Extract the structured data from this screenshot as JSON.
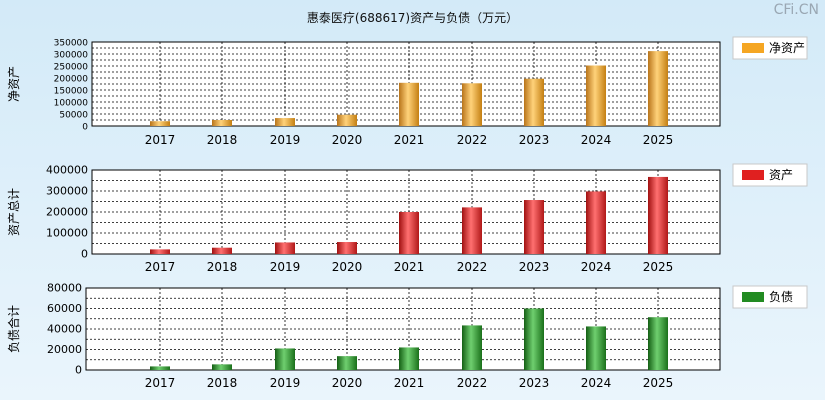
{
  "title": "惠泰医疗(688617)资产与负债（万元）",
  "watermark": "CFi.CN",
  "chart_data": [
    {
      "type": "bar",
      "ylabel": "净资产",
      "legend": "净资产",
      "color": "#f5a623",
      "categories": [
        "2017",
        "2018",
        "2019",
        "2020",
        "2021",
        "2022",
        "2023",
        "2024",
        "2025"
      ],
      "values": [
        20000,
        25000,
        33000,
        47000,
        180000,
        178000,
        197000,
        252000,
        312000
      ],
      "ylim": [
        0,
        350000
      ],
      "yticks": [
        0,
        50000,
        100000,
        150000,
        200000,
        250000,
        300000,
        350000
      ],
      "minor_yticks": [
        25000,
        75000,
        125000,
        175000,
        225000,
        275000,
        325000
      ],
      "legend_position": "right",
      "grid": true
    },
    {
      "type": "bar",
      "ylabel": "资产总计",
      "legend": "资产",
      "color": "#e02020",
      "categories": [
        "2017",
        "2018",
        "2019",
        "2020",
        "2021",
        "2022",
        "2023",
        "2024",
        "2025"
      ],
      "values": [
        22000,
        30000,
        55000,
        57000,
        200000,
        222000,
        257000,
        298000,
        367000
      ],
      "ylim": [
        0,
        400000
      ],
      "yticks": [
        0,
        100000,
        200000,
        300000,
        400000
      ],
      "minor_yticks": [
        50000,
        150000,
        250000,
        350000
      ],
      "legend_position": "right",
      "grid": true
    },
    {
      "type": "bar",
      "ylabel": "负债合计",
      "legend": "负债",
      "color": "#228b22",
      "categories": [
        "2017",
        "2018",
        "2019",
        "2020",
        "2021",
        "2022",
        "2023",
        "2024",
        "2025"
      ],
      "values": [
        3500,
        5500,
        21000,
        13500,
        22000,
        43500,
        60000,
        42500,
        51500
      ],
      "ylim": [
        0,
        80000
      ],
      "yticks": [
        0,
        20000,
        40000,
        60000,
        80000
      ],
      "minor_yticks": [
        10000,
        30000,
        50000,
        70000
      ],
      "legend_position": "right",
      "grid": true
    }
  ]
}
